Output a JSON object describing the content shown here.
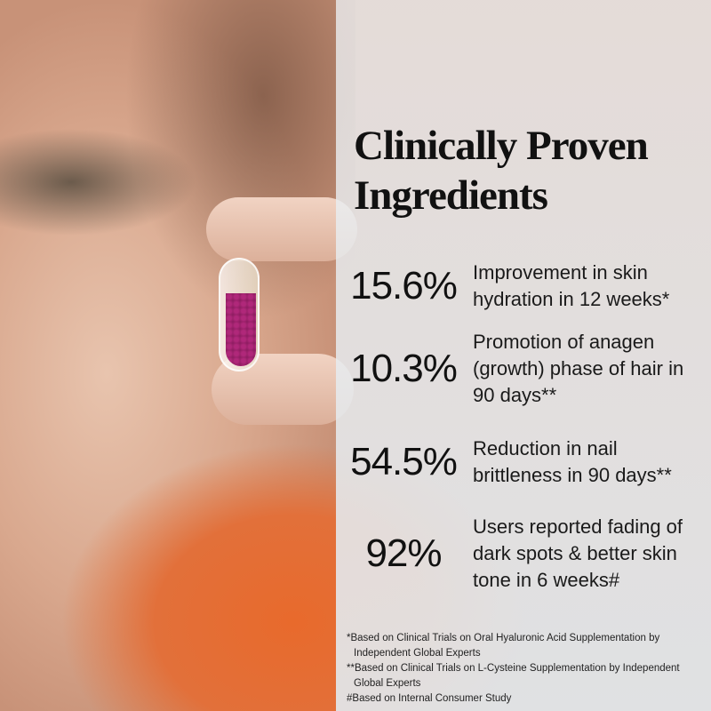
{
  "headline": "Clinically Proven Ingredients",
  "stats": [
    {
      "value": "15.6%",
      "text": "Improvement in skin hydration in 12 weeks*"
    },
    {
      "value": "10.3%",
      "text": "Promotion of anagen (growth) phase of hair in 90 days**"
    },
    {
      "value": "54.5%",
      "text": "Reduction in nail brittleness in 90 days**"
    },
    {
      "value": "92%",
      "text": "Users reported fading of dark spots & better skin tone in 6 weeks#"
    }
  ],
  "footnotes": [
    "*Based on Clinical Trials on Oral Hyaluronic Acid Supplementation by Independent Global Experts",
    "**Based on Clinical Trials on L-Cysteine Supplementation by Independent Global Experts",
    "#Based on Internal Consumer Study"
  ],
  "colors": {
    "text": "#111111",
    "capsule_beads": "#b0287a",
    "accent_bg": "#e86a2c"
  }
}
